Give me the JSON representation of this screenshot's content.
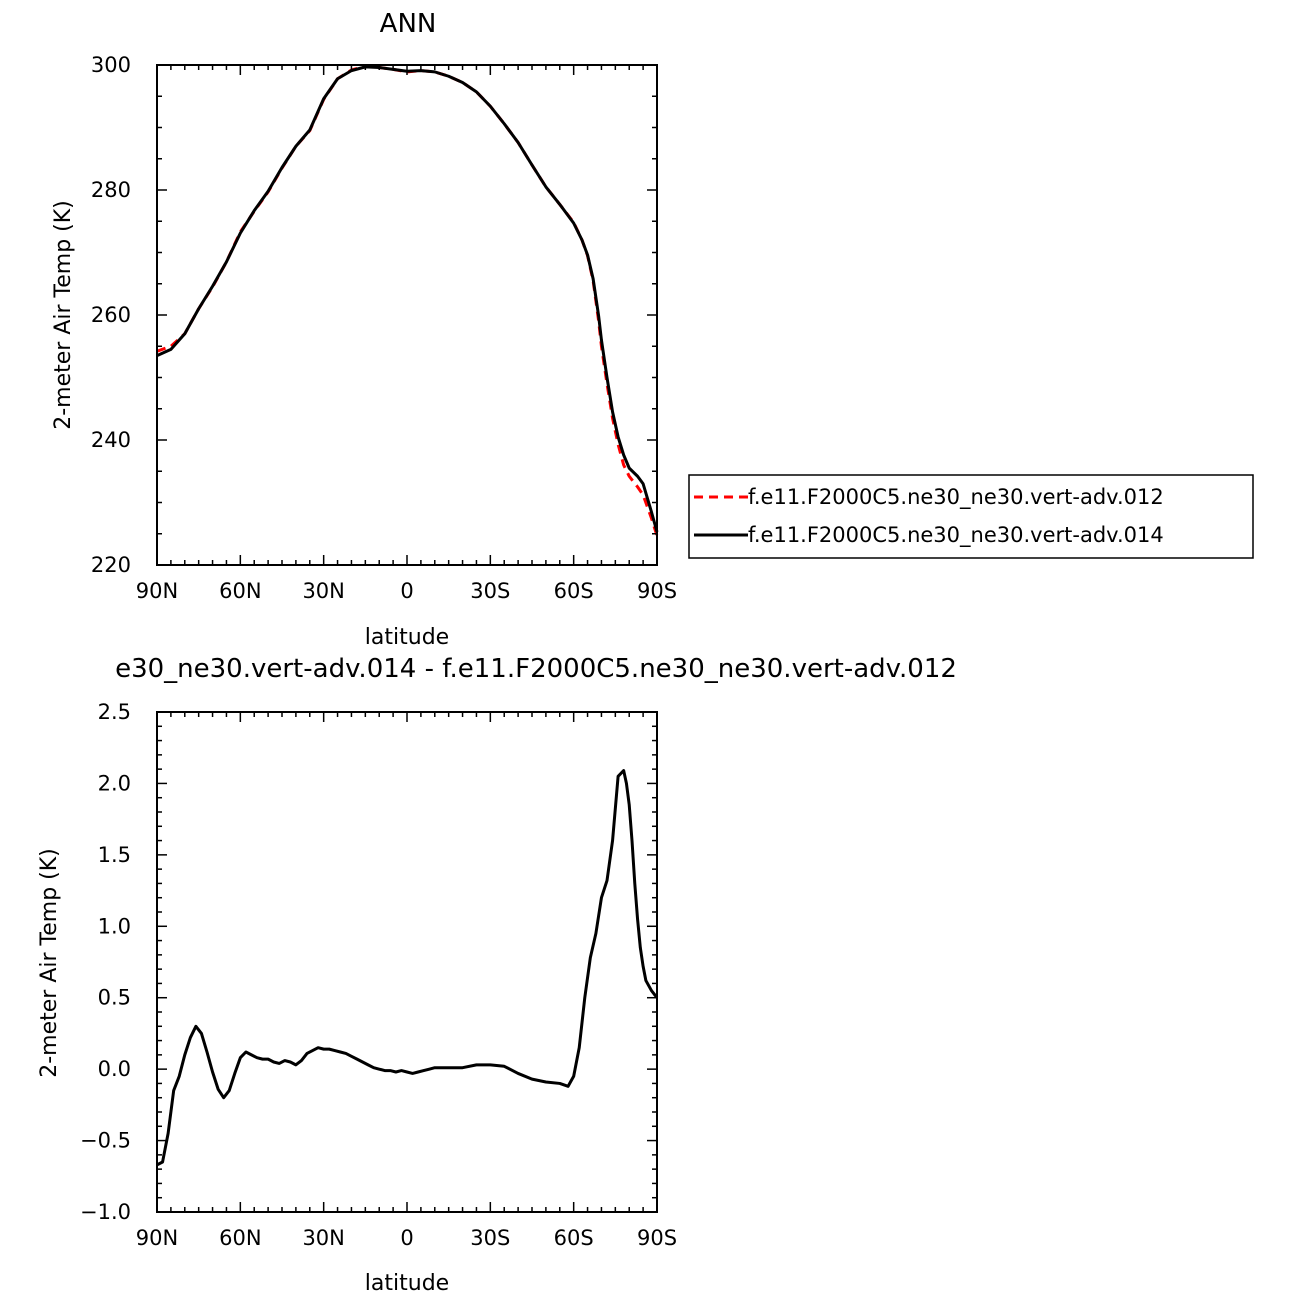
{
  "chart_data": [
    {
      "type": "line",
      "title": "ANN",
      "xlabel": "latitude",
      "ylabel": "2-meter Air Temp (K)",
      "xlim": [
        90,
        -90
      ],
      "ylim": [
        220,
        300
      ],
      "x_ticks": [
        {
          "value": 90,
          "label": "90N"
        },
        {
          "value": 60,
          "label": "60N"
        },
        {
          "value": 30,
          "label": "30N"
        },
        {
          "value": 0,
          "label": "0"
        },
        {
          "value": -30,
          "label": "30S"
        },
        {
          "value": -60,
          "label": "60S"
        },
        {
          "value": -90,
          "label": "90S"
        }
      ],
      "y_ticks": [
        {
          "value": 220,
          "label": "220"
        },
        {
          "value": 240,
          "label": "240"
        },
        {
          "value": 260,
          "label": "260"
        },
        {
          "value": 280,
          "label": "280"
        },
        {
          "value": 300,
          "label": "300"
        }
      ],
      "legend_position": "right",
      "series": [
        {
          "name": "f.e11.F2000C5.ne30_ne30.vert-adv.012",
          "color": "#ff0000",
          "dash": "dashed",
          "x": [
            90,
            85,
            80,
            75,
            70,
            65,
            60,
            55,
            50,
            45,
            40,
            35,
            30,
            25,
            20,
            15,
            10,
            5,
            0,
            -5,
            -10,
            -15,
            -20,
            -25,
            -30,
            -35,
            -40,
            -45,
            -50,
            -55,
            -60,
            -63,
            -65,
            -67,
            -69,
            -70,
            -72,
            -74,
            -76,
            -78,
            -80,
            -83,
            -85,
            -88,
            -90
          ],
          "y": [
            254.2,
            255,
            257,
            261,
            264.5,
            268.5,
            273.3,
            276.6,
            279.7,
            283.5,
            287,
            289.5,
            294.5,
            297.8,
            299.2,
            299.8,
            299.6,
            299.3,
            298.9,
            299.1,
            298.9,
            298.2,
            297.2,
            295.7,
            293.4,
            290.6,
            287.6,
            284,
            280.5,
            277.7,
            274.8,
            272,
            269.5,
            265.5,
            259,
            255,
            249,
            243.5,
            239.3,
            236,
            234.2,
            232.5,
            231.2,
            227.5,
            224.7
          ]
        },
        {
          "name": "f.e11.F2000C5.ne30_ne30.vert-adv.014",
          "color": "#000000",
          "dash": "solid",
          "x": [
            90,
            85,
            80,
            75,
            70,
            65,
            60,
            55,
            50,
            45,
            40,
            35,
            30,
            25,
            20,
            15,
            10,
            5,
            0,
            -5,
            -10,
            -15,
            -20,
            -25,
            -30,
            -35,
            -40,
            -45,
            -50,
            -55,
            -60,
            -63,
            -65,
            -67,
            -69,
            -70,
            -72,
            -74,
            -76,
            -78,
            -80,
            -83,
            -85,
            -88,
            -90
          ],
          "y": [
            253.5,
            254.5,
            257,
            261,
            264.6,
            268.5,
            273.1,
            276.7,
            279.8,
            283.6,
            287,
            289.6,
            294.6,
            297.8,
            299.1,
            299.7,
            299.6,
            299.3,
            299,
            299.1,
            298.9,
            298.2,
            297.2,
            295.7,
            293.4,
            290.6,
            287.6,
            284,
            280.5,
            277.7,
            274.7,
            272,
            269.6,
            265.8,
            259.8,
            256,
            250,
            244.5,
            240.5,
            237.6,
            235.5,
            234.2,
            233,
            228.5,
            225.3
          ]
        }
      ]
    },
    {
      "type": "line",
      "title": "e30_ne30.vert-adv.014 - f.e11.F2000C5.ne30_ne30.vert-adv.012",
      "xlabel": "latitude",
      "ylabel": "2-meter Air Temp (K)",
      "xlim": [
        90,
        -90
      ],
      "ylim": [
        -1.0,
        2.5
      ],
      "x_ticks": [
        {
          "value": 90,
          "label": "90N"
        },
        {
          "value": 60,
          "label": "60N"
        },
        {
          "value": 30,
          "label": "30N"
        },
        {
          "value": 0,
          "label": "0"
        },
        {
          "value": -30,
          "label": "30S"
        },
        {
          "value": -60,
          "label": "60S"
        },
        {
          "value": -90,
          "label": "90S"
        }
      ],
      "y_ticks": [
        {
          "value": -1.0,
          "label": "−1.0"
        },
        {
          "value": -0.5,
          "label": "−0.5"
        },
        {
          "value": 0.0,
          "label": "0.0"
        },
        {
          "value": 0.5,
          "label": "0.5"
        },
        {
          "value": 1.0,
          "label": "1.0"
        },
        {
          "value": 1.5,
          "label": "1.5"
        },
        {
          "value": 2.0,
          "label": "2.0"
        },
        {
          "value": 2.5,
          "label": "2.5"
        }
      ],
      "series": [
        {
          "color": "#000000",
          "dash": "solid",
          "x": [
            90,
            88,
            86,
            84,
            82,
            80,
            78,
            76,
            74,
            72,
            70,
            68,
            66,
            64,
            62,
            60,
            58,
            56,
            54,
            52,
            50,
            48,
            46,
            44,
            42,
            40,
            38,
            36,
            34,
            32,
            30,
            28,
            26,
            24,
            22,
            20,
            18,
            16,
            14,
            12,
            10,
            8,
            6,
            4,
            2,
            0,
            -2,
            -4,
            -6,
            -8,
            -10,
            -15,
            -20,
            -25,
            -30,
            -35,
            -40,
            -45,
            -50,
            -55,
            -58,
            -60,
            -62,
            -64,
            -66,
            -68,
            -70,
            -72,
            -74,
            -76,
            -78,
            -79,
            -80,
            -81,
            -82,
            -83,
            -84,
            -85,
            -86,
            -88,
            -90
          ],
          "y": [
            -0.67,
            -0.65,
            -0.45,
            -0.15,
            -0.05,
            0.1,
            0.22,
            0.3,
            0.25,
            0.12,
            -0.02,
            -0.14,
            -0.2,
            -0.15,
            -0.03,
            0.08,
            0.12,
            0.1,
            0.08,
            0.07,
            0.07,
            0.05,
            0.04,
            0.06,
            0.05,
            0.03,
            0.06,
            0.11,
            0.13,
            0.15,
            0.14,
            0.14,
            0.13,
            0.12,
            0.11,
            0.09,
            0.07,
            0.05,
            0.03,
            0.01,
            0.0,
            -0.01,
            -0.01,
            -0.02,
            -0.01,
            -0.02,
            -0.03,
            -0.02,
            -0.01,
            0.0,
            0.01,
            0.01,
            0.01,
            0.03,
            0.03,
            0.02,
            -0.03,
            -0.07,
            -0.09,
            -0.1,
            -0.12,
            -0.05,
            0.15,
            0.5,
            0.78,
            0.95,
            1.2,
            1.32,
            1.6,
            2.05,
            2.09,
            2.0,
            1.85,
            1.6,
            1.3,
            1.05,
            0.85,
            0.72,
            0.62,
            0.55,
            0.5
          ]
        }
      ]
    }
  ]
}
